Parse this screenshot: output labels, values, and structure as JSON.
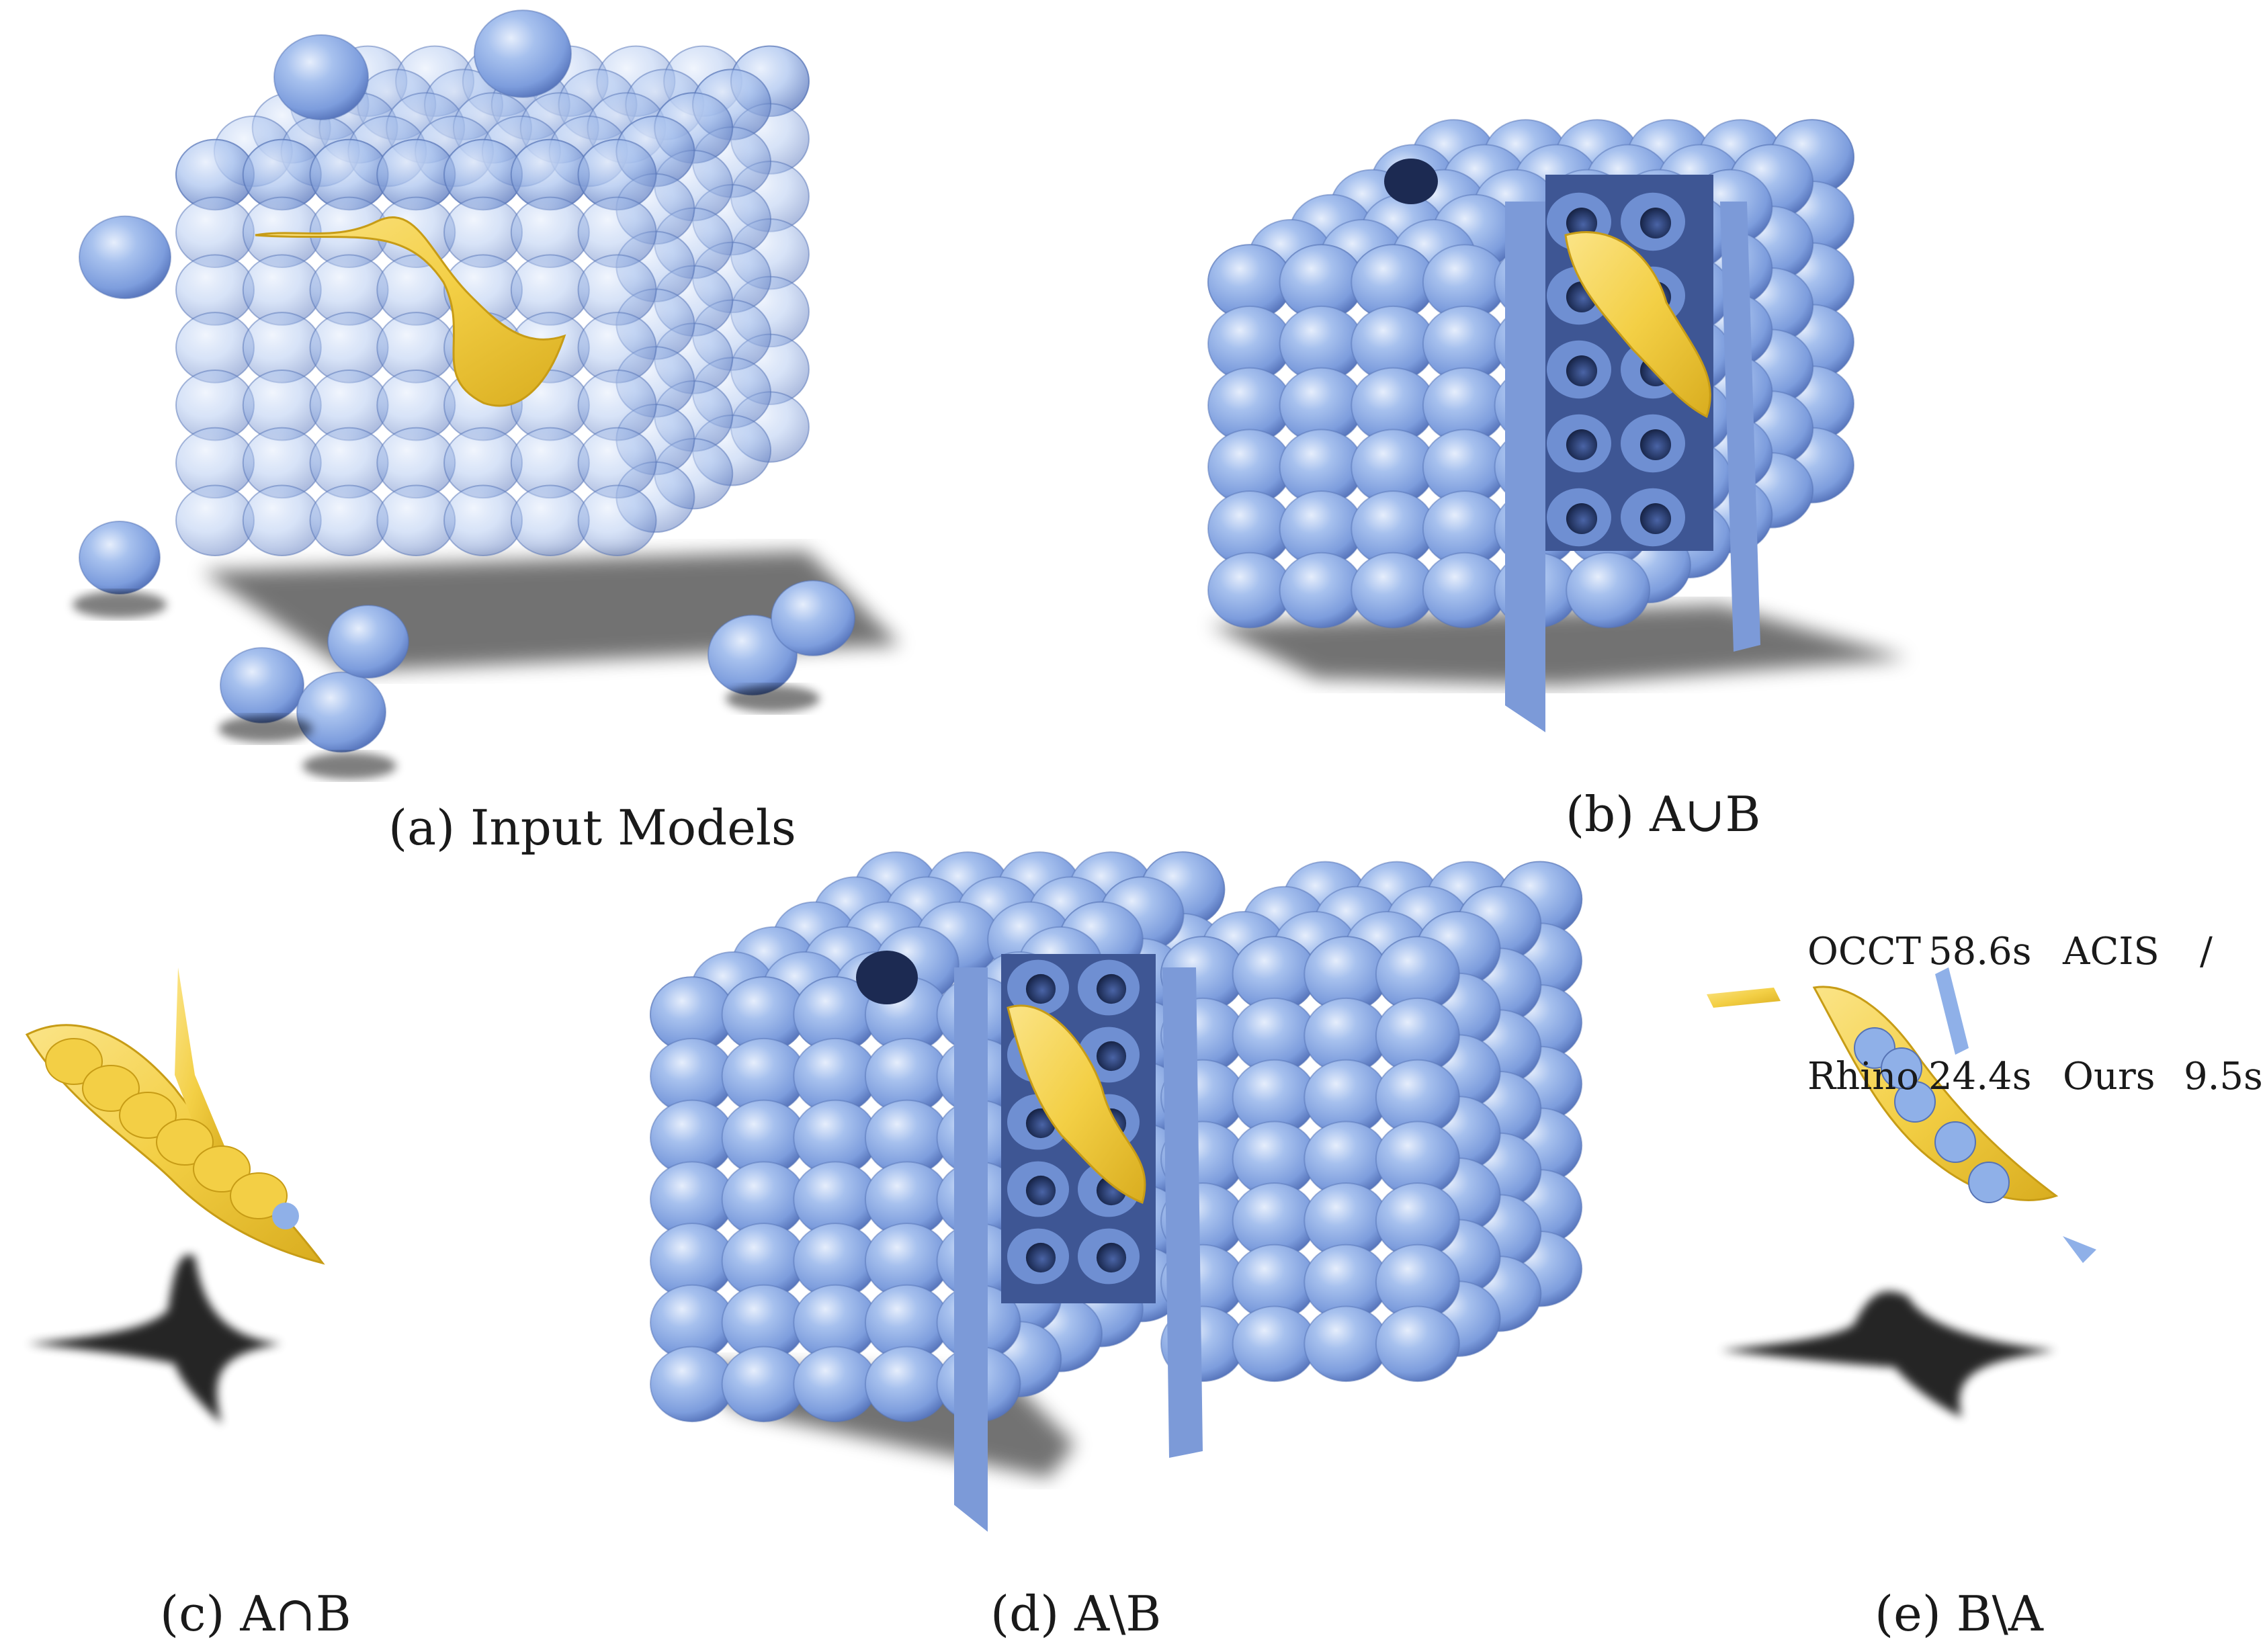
{
  "figure": {
    "panels": [
      {
        "id": "a",
        "caption": "(a) Input Models"
      },
      {
        "id": "b",
        "caption": "(b) A∪B"
      },
      {
        "id": "c",
        "caption": "(c) A∩B"
      },
      {
        "id": "d",
        "caption": "(d) A\\B"
      },
      {
        "id": "e",
        "caption": "(e) B\\A"
      }
    ],
    "timings": [
      {
        "name": "OCCT",
        "value": "58.6s"
      },
      {
        "name": "ACIS",
        "value": "/"
      },
      {
        "name": "Rhino",
        "value": "24.4s"
      },
      {
        "name": "Ours",
        "value": "9.5s"
      }
    ]
  },
  "colors": {
    "sphere_fill": "#8fb0e8",
    "sphere_highlight": "#d6e3fb",
    "sphere_shadow": "#4f6fb8",
    "surface_yellow": "#f4d24a",
    "hole_dark": "#1c2a52",
    "ground_shadow": "#111111"
  }
}
